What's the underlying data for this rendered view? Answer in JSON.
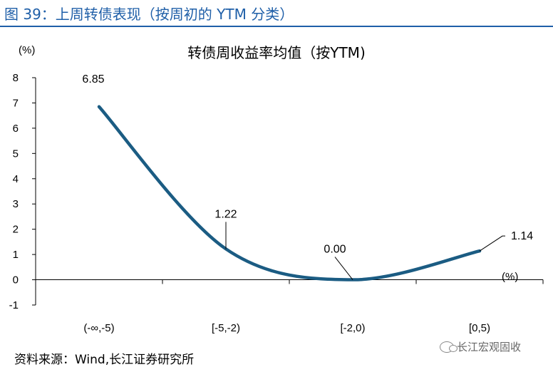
{
  "figure_title": "图 39：上周转债表现（按周初的 YTM 分类）",
  "source": "资料来源：Wind,长江证券研究所",
  "watermark": "长江宏观固收",
  "colors": {
    "line": "#1b5c83",
    "title": "#1f5fa8"
  },
  "chart_data": {
    "type": "line",
    "title": "转债周收益率均值（按YTM)",
    "ylabel": "(%)",
    "xlabel": "(%)",
    "categories": [
      "(-∞,-5)",
      "[-5,-2)",
      "[-2,0)",
      "[0,5)"
    ],
    "values": [
      6.85,
      1.22,
      0.0,
      1.14
    ],
    "data_labels": [
      "6.85",
      "1.22",
      "0.00",
      "1.14"
    ],
    "ylim": [
      -1,
      8
    ],
    "yticks": [
      "-1",
      "0",
      "1",
      "2",
      "3",
      "4",
      "5",
      "6",
      "7",
      "8"
    ],
    "smooth": true,
    "grid": false
  }
}
